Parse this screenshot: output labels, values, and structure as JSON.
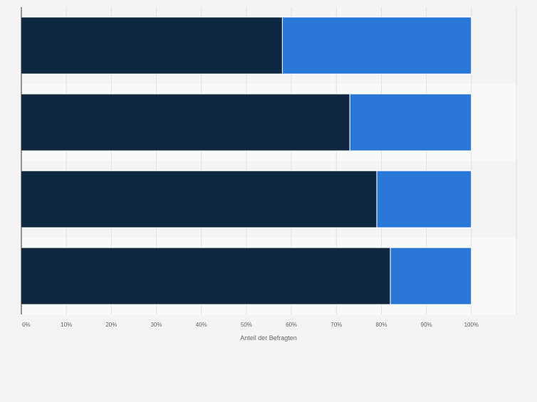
{
  "chart_data": {
    "type": "bar",
    "orientation": "horizontal",
    "stacked": true,
    "categories": [
      "",
      "",
      "",
      ""
    ],
    "series": [
      {
        "values": [
          58,
          73,
          79,
          82
        ],
        "color": "#0f2740"
      },
      {
        "values": [
          42,
          27,
          21,
          18
        ],
        "color": "#2a77d8"
      }
    ],
    "xlabel": "Anteil der Befragten",
    "xlim": [
      0,
      110
    ],
    "xticks": [
      0,
      10,
      20,
      30,
      40,
      50,
      60,
      70,
      80,
      90,
      100
    ],
    "tick_suffix": "%",
    "grid": true,
    "legend": "none"
  }
}
